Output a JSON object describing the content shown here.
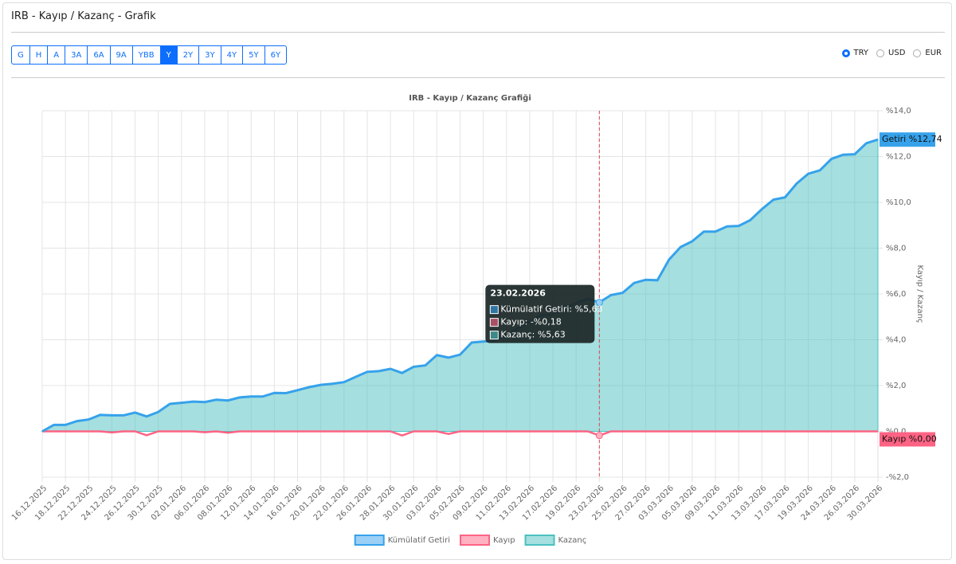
{
  "header": {
    "title": "IRB - Kayıp / Kazanç - Grafik"
  },
  "range_buttons": {
    "items": [
      "G",
      "H",
      "A",
      "3A",
      "6A",
      "9A",
      "YBB",
      "Y",
      "2Y",
      "3Y",
      "4Y",
      "5Y",
      "6Y"
    ],
    "active": "Y"
  },
  "currency": {
    "items": [
      "TRY",
      "USD",
      "EUR"
    ],
    "selected": "TRY"
  },
  "chart_data": {
    "type": "line",
    "title": "IRB - Kayıp / Kazanç Grafiği",
    "y_axis_label": "Kayıp / Kazanç",
    "categories": [
      "16.12.2025",
      null,
      "18.12.2025",
      null,
      "22.12.2025",
      null,
      "24.12.2025",
      null,
      "26.12.2025",
      null,
      "30.12.2025",
      null,
      "02.01.2026",
      null,
      "06.01.2026",
      null,
      "08.01.2026",
      null,
      "12.01.2026",
      null,
      "14.01.2026",
      null,
      "16.01.2026",
      null,
      "20.01.2026",
      null,
      "22.01.2026",
      null,
      "26.01.2026",
      null,
      "28.01.2026",
      null,
      "30.01.2026",
      null,
      "03.02.2026",
      null,
      "05.02.2026",
      null,
      "09.02.2026",
      null,
      "11.02.2026",
      null,
      "13.02.2026",
      null,
      "17.02.2026",
      null,
      "19.02.2026",
      null,
      "23.02.2026",
      null,
      "25.02.2026",
      null,
      "27.02.2026",
      null,
      "03.03.2026",
      null,
      "05.03.2026",
      null,
      "09.03.2026",
      null,
      "11.03.2026",
      null,
      "13.03.2026",
      null,
      "17.03.2026",
      null,
      "19.03.2026",
      null,
      "24.03.2026",
      null,
      "26.03.2026",
      null,
      "30.03.2026"
    ],
    "series": [
      {
        "name": "Kümülatif Getiri",
        "color": "#36a2eb",
        "values": [
          0,
          0.28,
          0.28,
          0.45,
          0.52,
          0.72,
          0.7,
          0.7,
          0.82,
          0.65,
          0.85,
          1.2,
          1.25,
          1.3,
          1.28,
          1.38,
          1.35,
          1.48,
          1.52,
          1.52,
          1.68,
          1.67,
          1.8,
          1.93,
          2.03,
          2.08,
          2.15,
          2.38,
          2.6,
          2.63,
          2.73,
          2.55,
          2.82,
          2.88,
          3.33,
          3.22,
          3.35,
          3.88,
          3.92,
          3.95,
          4.2,
          4.5,
          4.78,
          5.08,
          5.1,
          5.42,
          5.6,
          5.8,
          5.63,
          5.95,
          6.05,
          6.48,
          6.62,
          6.6,
          7.5,
          8.05,
          8.3,
          8.72,
          8.72,
          8.95,
          8.97,
          9.22,
          9.7,
          10.12,
          10.22,
          10.82,
          11.25,
          11.4,
          11.9,
          12.08,
          12.1,
          12.58,
          12.74
        ]
      },
      {
        "name": "Kayıp",
        "color": "#ff6384",
        "values": [
          0,
          0,
          0,
          0,
          0,
          0,
          -0.05,
          0,
          0,
          -0.17,
          0,
          0,
          0,
          0,
          -0.04,
          0,
          -0.06,
          0,
          0,
          0,
          0,
          0,
          0,
          0,
          0,
          0,
          0,
          0,
          0,
          0,
          0,
          -0.18,
          0,
          0,
          0,
          -0.11,
          0,
          0,
          0,
          0,
          0,
          0,
          0,
          0,
          0,
          0,
          0,
          0,
          -0.18,
          0,
          0,
          0,
          0,
          0,
          0,
          0,
          0,
          0,
          0,
          0,
          0,
          0,
          0,
          0,
          0,
          0,
          0,
          0,
          0,
          0,
          0,
          0,
          0
        ]
      },
      {
        "name": "Kazanç",
        "color": "#4bc0c0",
        "values": [
          0,
          0.28,
          0.28,
          0.45,
          0.52,
          0.72,
          0.7,
          0.7,
          0.82,
          0.65,
          0.85,
          1.2,
          1.25,
          1.3,
          1.28,
          1.38,
          1.35,
          1.48,
          1.52,
          1.52,
          1.68,
          1.67,
          1.8,
          1.93,
          2.03,
          2.08,
          2.15,
          2.38,
          2.6,
          2.63,
          2.73,
          2.55,
          2.82,
          2.88,
          3.33,
          3.22,
          3.35,
          3.88,
          3.92,
          3.95,
          4.2,
          4.5,
          4.78,
          5.08,
          5.1,
          5.42,
          5.6,
          5.8,
          5.63,
          5.95,
          6.05,
          6.48,
          6.62,
          6.6,
          7.5,
          8.05,
          8.3,
          8.72,
          8.72,
          8.95,
          8.97,
          9.22,
          9.7,
          10.12,
          10.22,
          10.82,
          11.25,
          11.4,
          11.9,
          12.08,
          12.1,
          12.58,
          12.74
        ]
      }
    ],
    "ylim": [
      -2,
      14
    ],
    "yticks": [
      {
        "value": -2,
        "label": "-%2,0"
      },
      {
        "value": 0,
        "label": "%0,0"
      },
      {
        "value": 2,
        "label": "%2,0"
      },
      {
        "value": 4,
        "label": "%4,0"
      },
      {
        "value": 6,
        "label": "%6,0"
      },
      {
        "value": 8,
        "label": "%8,0"
      },
      {
        "value": 10,
        "label": "%10,0"
      },
      {
        "value": 12,
        "label": "%12,0"
      },
      {
        "value": 14,
        "label": "%14,0"
      }
    ],
    "grid": true,
    "legend": "bottom",
    "end_labels": [
      "Getiri %12,74",
      "Kayıp %0,00"
    ],
    "tooltip": {
      "title": "23.02.2026",
      "lines": [
        "Kümülatif Getiri: %5,63",
        "Kayıp: -%0,18",
        "Kazanç: %5,63"
      ]
    }
  }
}
